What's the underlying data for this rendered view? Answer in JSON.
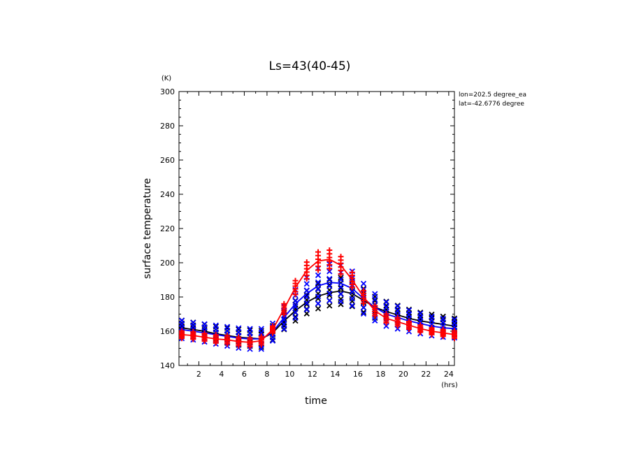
{
  "chart_data": {
    "type": "line",
    "title": "Ls=43(40-45)",
    "xlabel": "time",
    "ylabel": "surface temperature",
    "x_unit": "(hrs)",
    "y_unit": "(K)",
    "xlim": [
      0.25,
      24.5
    ],
    "ylim": [
      140,
      300
    ],
    "x_ticks": [
      2,
      4,
      6,
      8,
      10,
      12,
      14,
      16,
      18,
      20,
      22,
      24
    ],
    "y_ticks": [
      140,
      160,
      180,
      200,
      220,
      240,
      260,
      280,
      300
    ],
    "annotations": [
      "lon=202.5 degree_ea",
      "lat=-42.6776 degree"
    ],
    "grid": false,
    "legend": "none",
    "x": [
      0.5,
      1.5,
      2.5,
      3.5,
      4.5,
      5.5,
      6.5,
      7.5,
      8.5,
      9.5,
      10.5,
      11.5,
      12.5,
      13.5,
      14.5,
      15.5,
      16.5,
      17.5,
      18.5,
      19.5,
      20.5,
      21.5,
      22.5,
      23.5,
      24.5
    ],
    "series": [
      {
        "color": "#000000",
        "marker": "x",
        "line": [
          162,
          161,
          160,
          158.5,
          157.5,
          156.5,
          156,
          155.5,
          159,
          166,
          172,
          177,
          180.5,
          182.5,
          183.5,
          182,
          178,
          174,
          171.5,
          169.5,
          167.5,
          166,
          165,
          164,
          163
        ],
        "scatter_spread": 4
      },
      {
        "color": "#0000ff",
        "marker": "x",
        "line": [
          161,
          160,
          159,
          158,
          157,
          156,
          155.5,
          155.5,
          159.5,
          168,
          176,
          182,
          186.5,
          188.5,
          188,
          185,
          179,
          174,
          170,
          168,
          166,
          164.5,
          163,
          162,
          161.5
        ],
        "scatter_spread": 5
      },
      {
        "color": "#ff0000",
        "marker": "+",
        "line": [
          158,
          157.5,
          156.5,
          155.5,
          155,
          154,
          153.5,
          154.5,
          161,
          173,
          185.5,
          195.5,
          201,
          202,
          198.5,
          190,
          180,
          172,
          167.5,
          165.5,
          163.5,
          161.5,
          160,
          159,
          158
        ],
        "scatter_spread": 2
      }
    ]
  }
}
